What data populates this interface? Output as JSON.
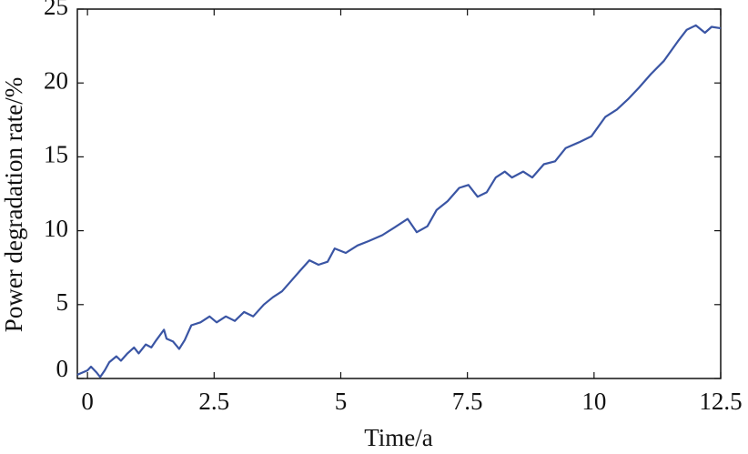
{
  "chart_data": {
    "type": "line",
    "x_label": "Time/a",
    "y_label": "Power degradation rate/%",
    "x": [
      -0.2,
      0,
      0.07,
      0.18,
      0.25,
      0.34,
      0.43,
      0.57,
      0.66,
      0.79,
      0.92,
      1.01,
      1.15,
      1.26,
      1.36,
      1.51,
      1.56,
      1.69,
      1.81,
      1.92,
      2.05,
      2.23,
      2.41,
      2.55,
      2.73,
      2.91,
      3.09,
      3.27,
      3.48,
      3.66,
      3.84,
      4.02,
      4.2,
      4.38,
      4.56,
      4.74,
      4.88,
      5.1,
      5.33,
      5.55,
      5.82,
      6.05,
      6.32,
      6.5,
      6.71,
      6.89,
      7.11,
      7.34,
      7.52,
      7.7,
      7.88,
      8.06,
      8.24,
      8.38,
      8.6,
      8.78,
      9.01,
      9.23,
      9.44,
      9.71,
      9.95,
      10.22,
      10.45,
      10.67,
      10.89,
      11.12,
      11.38,
      11.65,
      11.83,
      12.01,
      12.19,
      12.32,
      12.5
    ],
    "series": [
      {
        "color": "#3a55a4",
        "values": [
          0.25,
          0.55,
          0.8,
          0.4,
          0.1,
          0.55,
          1.1,
          1.5,
          1.2,
          1.7,
          2.1,
          1.7,
          2.3,
          2.1,
          2.6,
          3.3,
          2.7,
          2.5,
          2.0,
          2.6,
          3.6,
          3.8,
          4.2,
          3.8,
          4.2,
          3.9,
          4.5,
          4.2,
          5.0,
          5.5,
          5.9,
          6.6,
          7.3,
          8.0,
          7.7,
          7.9,
          8.8,
          8.5,
          9.0,
          9.3,
          9.7,
          10.2,
          10.8,
          9.9,
          10.3,
          11.4,
          12.0,
          12.9,
          13.1,
          12.3,
          12.6,
          13.6,
          14.0,
          13.6,
          14.0,
          13.6,
          14.5,
          14.7,
          15.6,
          16.0,
          16.4,
          17.7,
          18.2,
          18.9,
          19.7,
          20.6,
          21.5,
          22.8,
          23.6,
          23.9,
          23.4,
          23.8,
          23.7
        ]
      }
    ],
    "xlim": [
      -0.2,
      12.5
    ],
    "ylim": [
      0,
      25
    ],
    "xticks": [
      0,
      2.5,
      5,
      7.5,
      10,
      12.5
    ],
    "yticks": [
      0,
      5,
      10,
      15,
      20,
      25
    ]
  }
}
